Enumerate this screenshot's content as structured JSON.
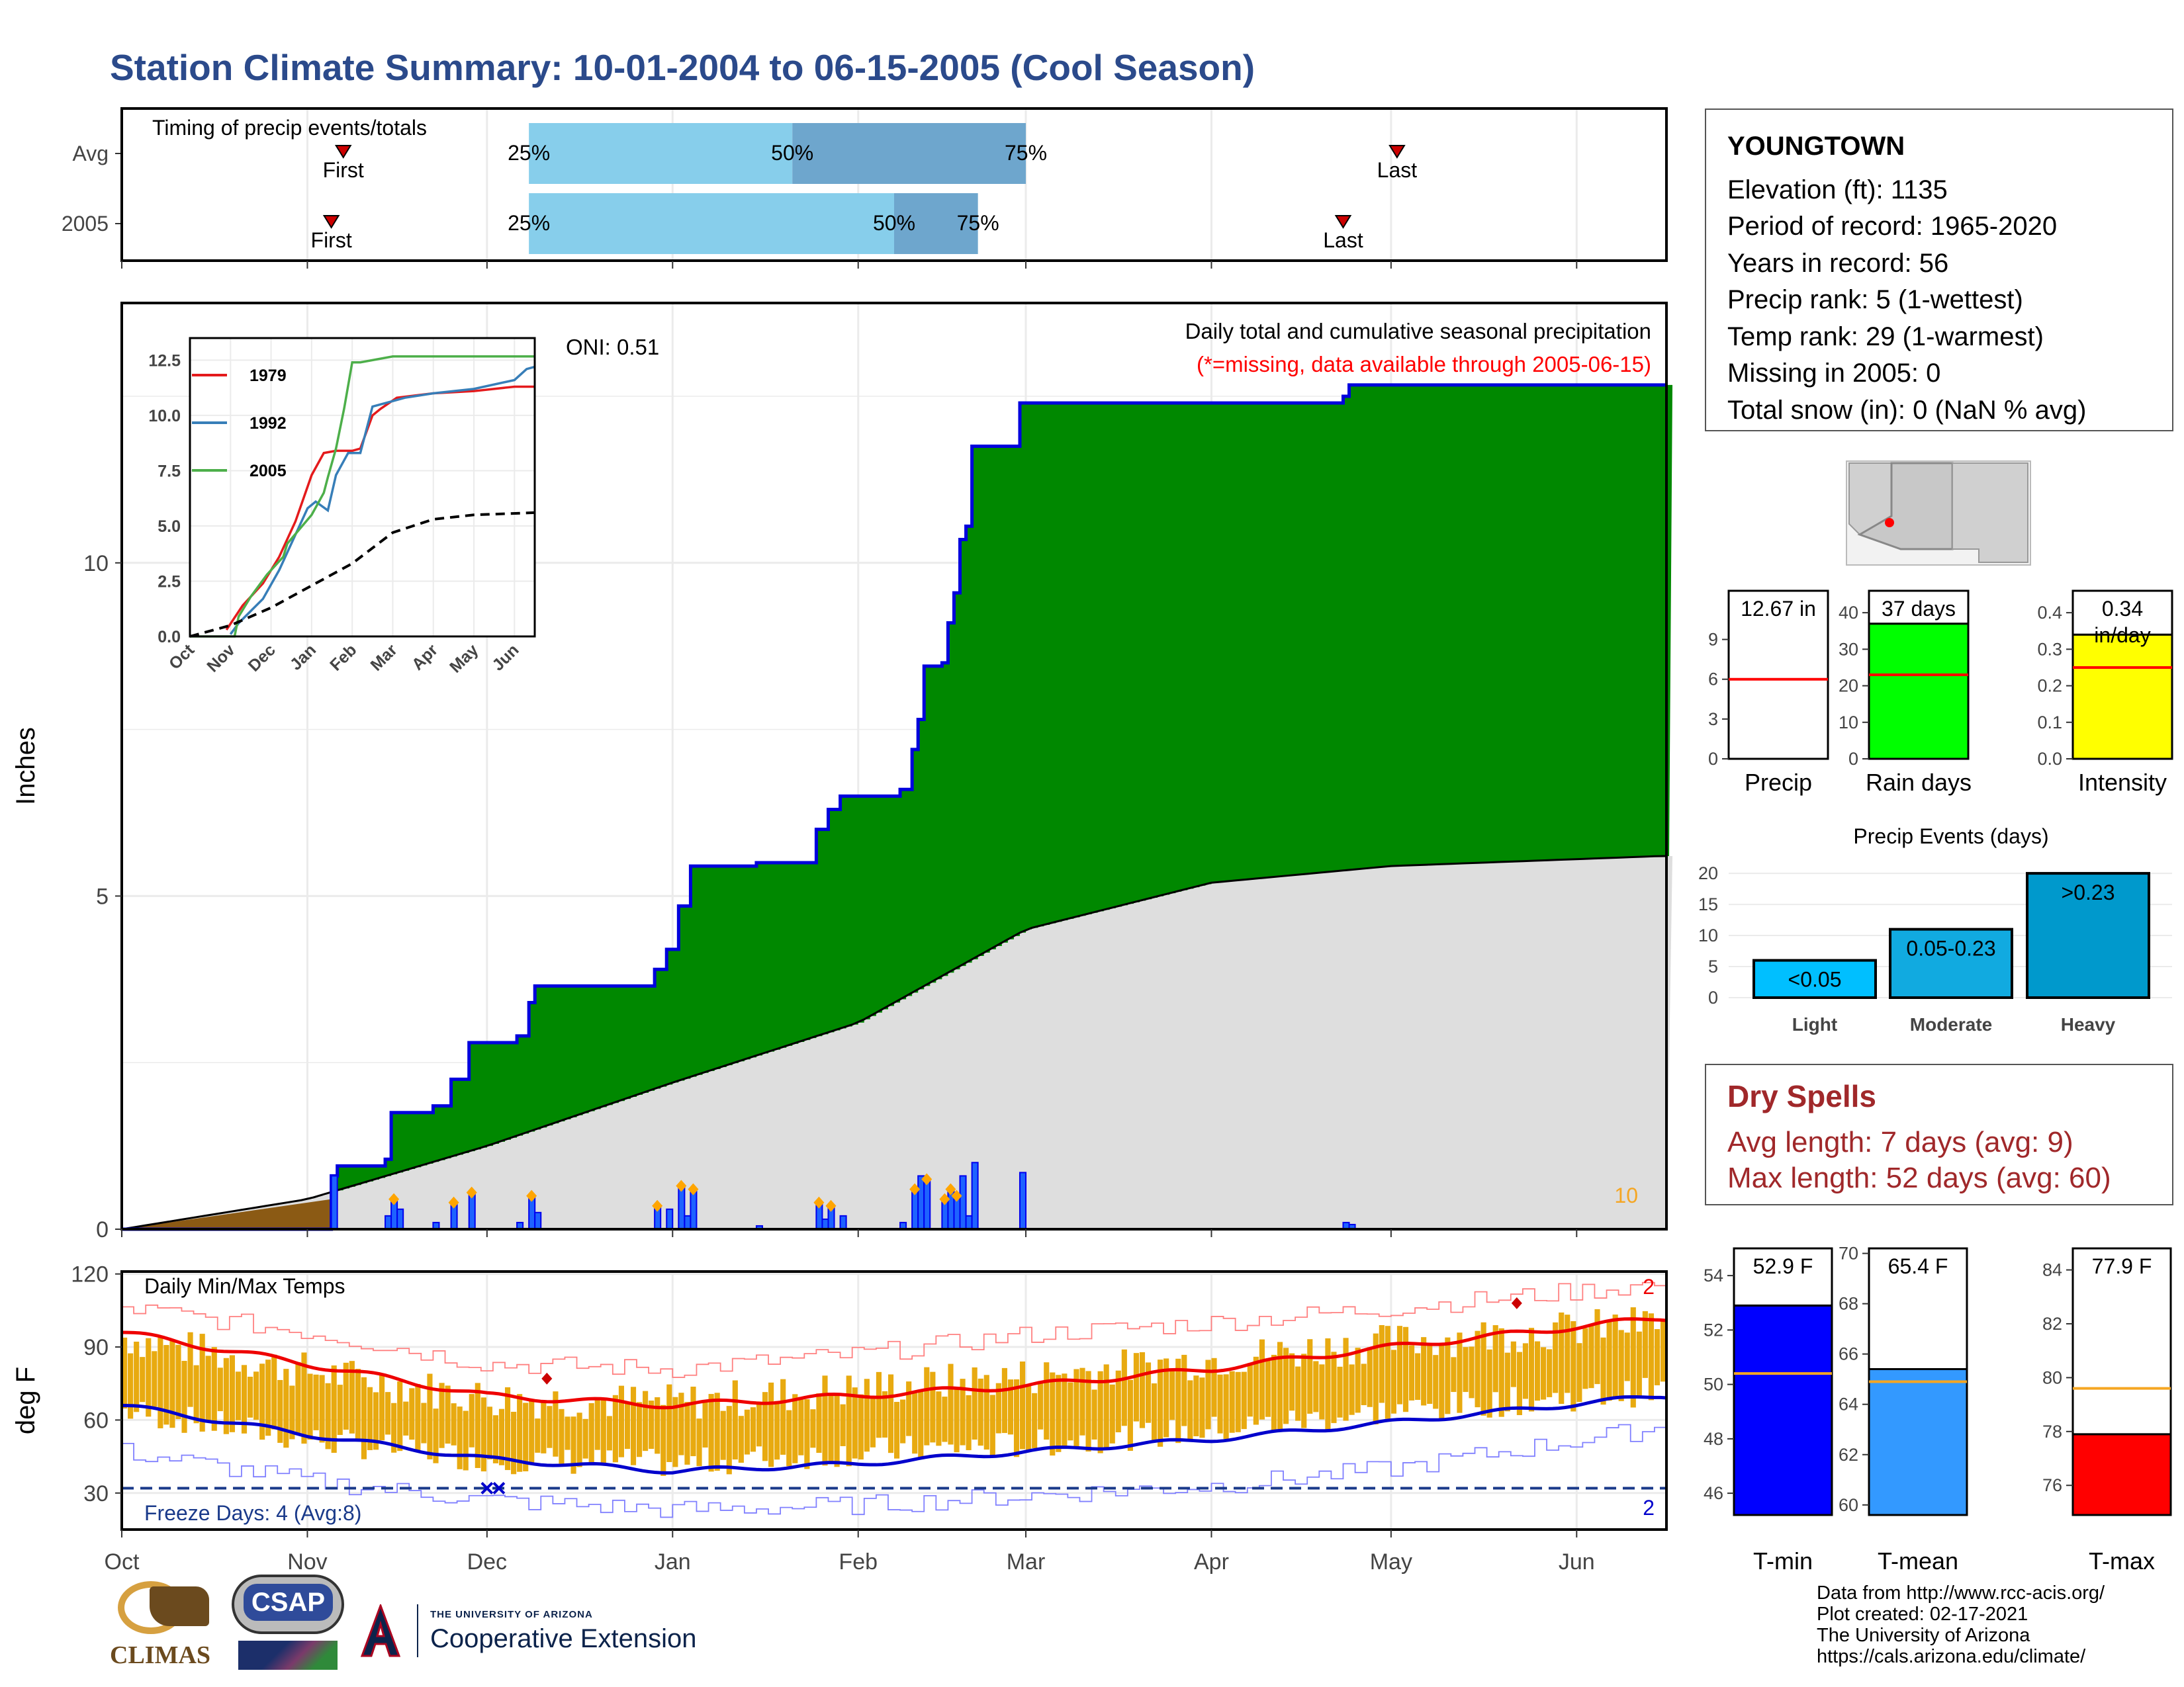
{
  "title": "Station Climate Summary: 10-01-2004 to 06-15-2005 (Cool Season)",
  "colors": {
    "title": "#2b4a8b",
    "cum_fill": "#008800",
    "cum_line": "#0000dd",
    "avg_fill": "#dedede",
    "bar": "#0000ee",
    "bar_fill": "#1e63ff",
    "range_bar": "#e8aa10",
    "tmax_line": "#ee0000",
    "tmin_line": "#0000cc",
    "freeze_line": "#1a3a8a",
    "dry_spells": "#a0282a",
    "marker": "#ffa500",
    "precip_gauge": "#ffffff",
    "rain_gauge": "#00ff00",
    "intensity_gauge": "#ffff00",
    "tmin_gauge": "#0000ff",
    "tmean_gauge": "#3399ff",
    "tmax_gauge": "#ff0000"
  },
  "timing_panel": {
    "title": "Timing of precip events/totals",
    "rows": [
      {
        "label": "Avg",
        "first_label": "First",
        "last_label": "Last",
        "first": "2004-11-07",
        "last": "2005-05-02",
        "p25": "2004-12-08",
        "p50": "2005-01-21",
        "p75": "2005-03-01"
      },
      {
        "label": "2005",
        "first_label": "First",
        "last_label": "Last",
        "first": "2004-11-05",
        "last": "2005-04-23",
        "p25": "2004-12-08",
        "p50": "2005-02-07",
        "p75": "2005-02-21"
      }
    ],
    "pct_labels": [
      "25%",
      "50%",
      "75%"
    ]
  },
  "main_panel": {
    "ylabel": "Inches",
    "yticks": [
      "0",
      "5",
      "10"
    ],
    "oni": "ONI: 0.51",
    "legend_title": "Daily total and cumulative seasonal precipitation",
    "legend_missing": "(*=missing, data available through 2005-06-15)",
    "corner_count": "10"
  },
  "inset": {
    "yticks": [
      "0.0",
      "2.5",
      "5.0",
      "7.5",
      "10.0",
      "12.5"
    ],
    "xticks": [
      "Oct",
      "Nov",
      "Dec",
      "Jan",
      "Feb",
      "Mar",
      "Apr",
      "May",
      "Jun"
    ],
    "legend": [
      {
        "name": "1979",
        "color": "#e41a1c"
      },
      {
        "name": "1992",
        "color": "#377eb8"
      },
      {
        "name": "2005",
        "color": "#4daf4a"
      }
    ]
  },
  "temp_panel": {
    "title": "Daily Min/Max Temps",
    "ylabel": "deg F",
    "yticks": [
      "30",
      "60",
      "90",
      "120"
    ],
    "freeze_label": "Freeze Days: 4 (Avg:8)",
    "count_max": "2",
    "count_min": "2"
  },
  "x_axis": [
    "Oct",
    "Nov",
    "Dec",
    "Jan",
    "Feb",
    "Mar",
    "Apr",
    "May",
    "Jun"
  ],
  "station": {
    "name": "YOUNGTOWN",
    "lines": [
      "Elevation (ft): 1135",
      "Period of record: 1965-2020",
      "Years in record: 56",
      "Precip rank: 5 (1-wettest)",
      "Temp rank: 29 (1-warmest)",
      "Missing in 2005: 0",
      "Total snow (in): 0 (NaN % avg)"
    ]
  },
  "gauges": [
    {
      "label": "Precip",
      "value_label": "12.67 in",
      "ticks": [
        "0",
        "3",
        "6",
        "9"
      ],
      "min": 0,
      "max": 12.67,
      "value": 12.67,
      "avg": 6.0
    },
    {
      "label": "Rain days",
      "value_label": "37 days",
      "ticks": [
        "0",
        "10",
        "20",
        "30",
        "40"
      ],
      "min": 0,
      "max": 46,
      "value": 37,
      "avg": 23
    },
    {
      "label": "Intensity",
      "value_label": "0.34",
      "value_unit": "in/day",
      "ticks": [
        "0.0",
        "0.1",
        "0.2",
        "0.3",
        "0.4"
      ],
      "min": 0,
      "max": 0.46,
      "value": 0.34,
      "avg": 0.25
    }
  ],
  "temp_gauges": [
    {
      "label": "T-min",
      "value_label": "52.9 F",
      "ticks": [
        "46",
        "48",
        "50",
        "52",
        "54"
      ],
      "min": 45.2,
      "max": 55.0,
      "value": 52.9,
      "avg": 50.4
    },
    {
      "label": "T-mean",
      "value_label": "65.4 F",
      "ticks": [
        "60",
        "62",
        "64",
        "66",
        "68",
        "70"
      ],
      "min": 59.6,
      "max": 70.2,
      "value": 65.4,
      "avg": 64.9
    },
    {
      "label": "T-max",
      "value_label": "77.9 F",
      "ticks": [
        "76",
        "78",
        "80",
        "82",
        "84"
      ],
      "min": 74.9,
      "max": 84.8,
      "value": 77.9,
      "avg": 79.6
    }
  ],
  "events": {
    "title": "Precip Events (days)",
    "ticks": [
      "0",
      "5",
      "10",
      "15",
      "20"
    ],
    "categories": [
      {
        "name": "Light",
        "value": 6,
        "label": "<0.05",
        "color": "#00bfff"
      },
      {
        "name": "Moderate",
        "value": 11,
        "label": "0.05-0.23",
        "color": "#11aae0"
      },
      {
        "name": "Heavy",
        "value": 20,
        "label": ">0.23",
        "color": "#0099cc"
      }
    ]
  },
  "dry_spells": {
    "title": "Dry Spells",
    "avg": "Avg length: 7 days (avg: 9)",
    "max": "Max length: 52 days (avg: 60)"
  },
  "footer": {
    "logos": [
      "CLIMAS",
      "CSAP"
    ],
    "ua_small": "THE UNIVERSITY OF ARIZONA",
    "ua_big": "Cooperative Extension",
    "credits": [
      "Data from http://www.rcc-acis.org/",
      "Plot created: 02-17-2021",
      "The University of Arizona",
      "https://cals.arizona.edu/climate/"
    ]
  },
  "chart_data": [
    {
      "type": "area",
      "name": "Daily total and cumulative seasonal precipitation",
      "xlabel": "",
      "ylabel": "Inches",
      "ylim": [
        0,
        13.9
      ],
      "x_range": [
        "2004-10-01",
        "2005-06-15"
      ],
      "cumulative_2005": [
        [
          "2004-10-01",
          0
        ],
        [
          "2004-11-01",
          0
        ],
        [
          "2004-11-05",
          0.8
        ],
        [
          "2004-11-06",
          0.95
        ],
        [
          "2004-11-14",
          1.05
        ],
        [
          "2004-11-15",
          1.75
        ],
        [
          "2004-11-22",
          1.85
        ],
        [
          "2004-11-25",
          2.25
        ],
        [
          "2004-11-28",
          2.8
        ],
        [
          "2004-12-06",
          2.9
        ],
        [
          "2004-12-08",
          3.4
        ],
        [
          "2004-12-09",
          3.65
        ],
        [
          "2004-12-29",
          3.9
        ],
        [
          "2004-12-31",
          4.2
        ],
        [
          "2005-01-02",
          4.85
        ],
        [
          "2005-01-04",
          5.45
        ],
        [
          "2005-01-15",
          5.5
        ],
        [
          "2005-01-23",
          5.5
        ],
        [
          "2005-01-25",
          6.0
        ],
        [
          "2005-01-27",
          6.3
        ],
        [
          "2005-01-29",
          6.5
        ],
        [
          "2005-02-08",
          6.6
        ],
        [
          "2005-02-10",
          7.2
        ],
        [
          "2005-02-11",
          7.65
        ],
        [
          "2005-02-12",
          8.45
        ],
        [
          "2005-02-15",
          8.5
        ],
        [
          "2005-02-16",
          9.1
        ],
        [
          "2005-02-17",
          9.55
        ],
        [
          "2005-02-18",
          10.35
        ],
        [
          "2005-02-19",
          10.55
        ],
        [
          "2005-02-20",
          11.75
        ],
        [
          "2005-02-28",
          12.4
        ],
        [
          "2005-04-23",
          12.5
        ],
        [
          "2005-04-24",
          12.67
        ],
        [
          "2005-06-15",
          12.67
        ]
      ],
      "average_cumulative": [
        [
          "2004-10-01",
          0
        ],
        [
          "2004-11-01",
          0.45
        ],
        [
          "2004-12-01",
          1.25
        ],
        [
          "2005-01-01",
          2.2
        ],
        [
          "2005-02-01",
          3.1
        ],
        [
          "2005-03-01",
          4.5
        ],
        [
          "2005-04-01",
          5.2
        ],
        [
          "2005-05-01",
          5.45
        ],
        [
          "2005-06-15",
          5.6
        ]
      ],
      "daily_precip": [
        [
          "2004-11-05",
          0.8
        ],
        [
          "2004-11-14",
          0.2
        ],
        [
          "2004-11-15",
          0.45
        ],
        [
          "2004-11-16",
          0.3
        ],
        [
          "2004-11-22",
          0.1
        ],
        [
          "2004-11-25",
          0.4
        ],
        [
          "2004-11-28",
          0.55
        ],
        [
          "2004-12-06",
          0.1
        ],
        [
          "2004-12-08",
          0.5
        ],
        [
          "2004-12-09",
          0.25
        ],
        [
          "2004-12-29",
          0.35
        ],
        [
          "2004-12-31",
          0.3
        ],
        [
          "2005-01-02",
          0.65
        ],
        [
          "2005-01-03",
          0.2
        ],
        [
          "2005-01-04",
          0.6
        ],
        [
          "2005-01-15",
          0.05
        ],
        [
          "2005-01-25",
          0.4
        ],
        [
          "2005-01-26",
          0.15
        ],
        [
          "2005-01-27",
          0.35
        ],
        [
          "2005-01-29",
          0.2
        ],
        [
          "2005-02-08",
          0.1
        ],
        [
          "2005-02-10",
          0.6
        ],
        [
          "2005-02-11",
          0.8
        ],
        [
          "2005-02-12",
          0.75
        ],
        [
          "2005-02-15",
          0.45
        ],
        [
          "2005-02-16",
          0.6
        ],
        [
          "2005-02-17",
          0.5
        ],
        [
          "2005-02-18",
          0.8
        ],
        [
          "2005-02-19",
          0.2
        ],
        [
          "2005-02-20",
          1.0
        ],
        [
          "2005-02-28",
          0.85
        ],
        [
          "2005-04-23",
          0.1
        ],
        [
          "2005-04-24",
          0.07
        ]
      ],
      "early_season_fill": [
        [
          "2004-10-01",
          0
        ],
        [
          "2004-11-05",
          0.45
        ]
      ]
    },
    {
      "type": "line",
      "name": "Inset cumulative",
      "xlim": [
        "Oct",
        "Jun"
      ],
      "ylim": [
        0,
        12.5
      ],
      "series": [
        {
          "name": "1979",
          "color": "#e41a1c",
          "points": [
            [
              0.9,
              0.3
            ],
            [
              1.3,
              1.4
            ],
            [
              1.8,
              2.4
            ],
            [
              2.2,
              3.6
            ],
            [
              2.6,
              5.2
            ],
            [
              3.0,
              7.3
            ],
            [
              3.3,
              8.3
            ],
            [
              3.6,
              8.4
            ],
            [
              4.0,
              8.4
            ],
            [
              4.2,
              8.5
            ],
            [
              4.5,
              10.0
            ],
            [
              4.7,
              10.3
            ],
            [
              5.1,
              10.8
            ],
            [
              6.0,
              11.0
            ],
            [
              7.0,
              11.1
            ],
            [
              8.0,
              11.3
            ],
            [
              8.5,
              11.3
            ]
          ]
        },
        {
          "name": "1992",
          "color": "#377eb8",
          "points": [
            [
              1.0,
              0.1
            ],
            [
              1.2,
              0.6
            ],
            [
              1.8,
              1.7
            ],
            [
              2.2,
              3.0
            ],
            [
              2.6,
              4.6
            ],
            [
              2.9,
              5.8
            ],
            [
              3.1,
              6.1
            ],
            [
              3.4,
              5.7
            ],
            [
              3.6,
              7.3
            ],
            [
              3.9,
              8.3
            ],
            [
              4.2,
              8.3
            ],
            [
              4.5,
              10.4
            ],
            [
              4.9,
              10.6
            ],
            [
              5.3,
              10.8
            ],
            [
              6.0,
              11.0
            ],
            [
              7.0,
              11.2
            ],
            [
              8.0,
              11.6
            ],
            [
              8.3,
              12.1
            ],
            [
              8.5,
              12.2
            ]
          ]
        },
        {
          "name": "2005",
          "color": "#4daf4a",
          "points": [
            [
              0.0,
              0.0
            ],
            [
              1.1,
              0.0
            ],
            [
              1.2,
              0.9
            ],
            [
              1.5,
              1.8
            ],
            [
              1.9,
              2.8
            ],
            [
              2.3,
              3.6
            ],
            [
              2.4,
              4.2
            ],
            [
              3.0,
              5.5
            ],
            [
              3.3,
              6.5
            ],
            [
              3.4,
              7.2
            ],
            [
              3.6,
              8.5
            ],
            [
              3.8,
              10.3
            ],
            [
              4.0,
              12.4
            ],
            [
              4.2,
              12.4
            ],
            [
              5.0,
              12.67
            ],
            [
              8.5,
              12.67
            ]
          ]
        },
        {
          "name": "",
          "color": "#000000",
          "dashed": true,
          "points": [
            [
              0.0,
              0.0
            ],
            [
              1.0,
              0.5
            ],
            [
              2.0,
              1.3
            ],
            [
              3.0,
              2.3
            ],
            [
              4.0,
              3.3
            ],
            [
              5.0,
              4.7
            ],
            [
              6.0,
              5.3
            ],
            [
              7.0,
              5.5
            ],
            [
              8.5,
              5.6
            ]
          ]
        }
      ]
    },
    {
      "type": "line",
      "name": "Daily Min/Max Temps",
      "ylabel": "deg F",
      "ylim": [
        15,
        121
      ],
      "x_range": [
        "2004-10-01",
        "2005-06-15"
      ],
      "avg_tmax": [
        [
          "2004-10-01",
          96
        ],
        [
          "2004-11-01",
          83
        ],
        [
          "2004-12-01",
          70
        ],
        [
          "2005-01-01",
          66
        ],
        [
          "2005-02-01",
          70
        ],
        [
          "2005-03-01",
          74
        ],
        [
          "2005-04-01",
          81
        ],
        [
          "2005-05-01",
          90
        ],
        [
          "2005-06-15",
          102
        ]
      ],
      "avg_tmin": [
        [
          "2004-10-01",
          66
        ],
        [
          "2004-11-01",
          54
        ],
        [
          "2004-12-01",
          44
        ],
        [
          "2005-01-01",
          39
        ],
        [
          "2005-02-01",
          42
        ],
        [
          "2005-03-01",
          47
        ],
        [
          "2005-04-01",
          52
        ],
        [
          "2005-05-01",
          59
        ],
        [
          "2005-06-15",
          70
        ]
      ],
      "record_max": [
        [
          "2004-10-01",
          106
        ],
        [
          "2004-11-01",
          96
        ],
        [
          "2004-12-01",
          83
        ],
        [
          "2005-01-01",
          81
        ],
        [
          "2005-02-01",
          87
        ],
        [
          "2005-03-01",
          95
        ],
        [
          "2005-04-01",
          100
        ],
        [
          "2005-05-01",
          106
        ],
        [
          "2005-06-15",
          116
        ]
      ],
      "record_min": [
        [
          "2004-10-01",
          47
        ],
        [
          "2004-11-01",
          35
        ],
        [
          "2004-12-01",
          27
        ],
        [
          "2005-01-01",
          23
        ],
        [
          "2005-02-01",
          25
        ],
        [
          "2005-03-01",
          29
        ],
        [
          "2005-04-01",
          33
        ],
        [
          "2005-05-01",
          40
        ],
        [
          "2005-06-15",
          57
        ]
      ],
      "daily_range": {
        "max_anchor": [
          [
            "2004-10-01",
            94
          ],
          [
            "2004-11-01",
            80
          ],
          [
            "2004-12-01",
            69
          ],
          [
            "2005-01-01",
            67
          ],
          [
            "2005-02-01",
            73
          ],
          [
            "2005-03-01",
            78
          ],
          [
            "2005-04-01",
            85
          ],
          [
            "2005-05-01",
            92
          ],
          [
            "2005-06-15",
            100
          ]
        ],
        "min_anchor": [
          [
            "2004-10-01",
            64
          ],
          [
            "2004-11-01",
            52
          ],
          [
            "2004-12-01",
            44
          ],
          [
            "2005-01-01",
            42
          ],
          [
            "2005-02-01",
            47
          ],
          [
            "2005-03-01",
            50
          ],
          [
            "2005-04-01",
            56
          ],
          [
            "2005-05-01",
            64
          ],
          [
            "2005-06-15",
            72
          ]
        ]
      },
      "freeze_threshold": 32,
      "record_highs_hit": [
        [
          "2004-12-11",
          77
        ],
        [
          "2005-05-22",
          108
        ]
      ],
      "record_lows_hit": [
        [
          "2004-12-01",
          32
        ],
        [
          "2004-12-03",
          32
        ]
      ]
    }
  ]
}
